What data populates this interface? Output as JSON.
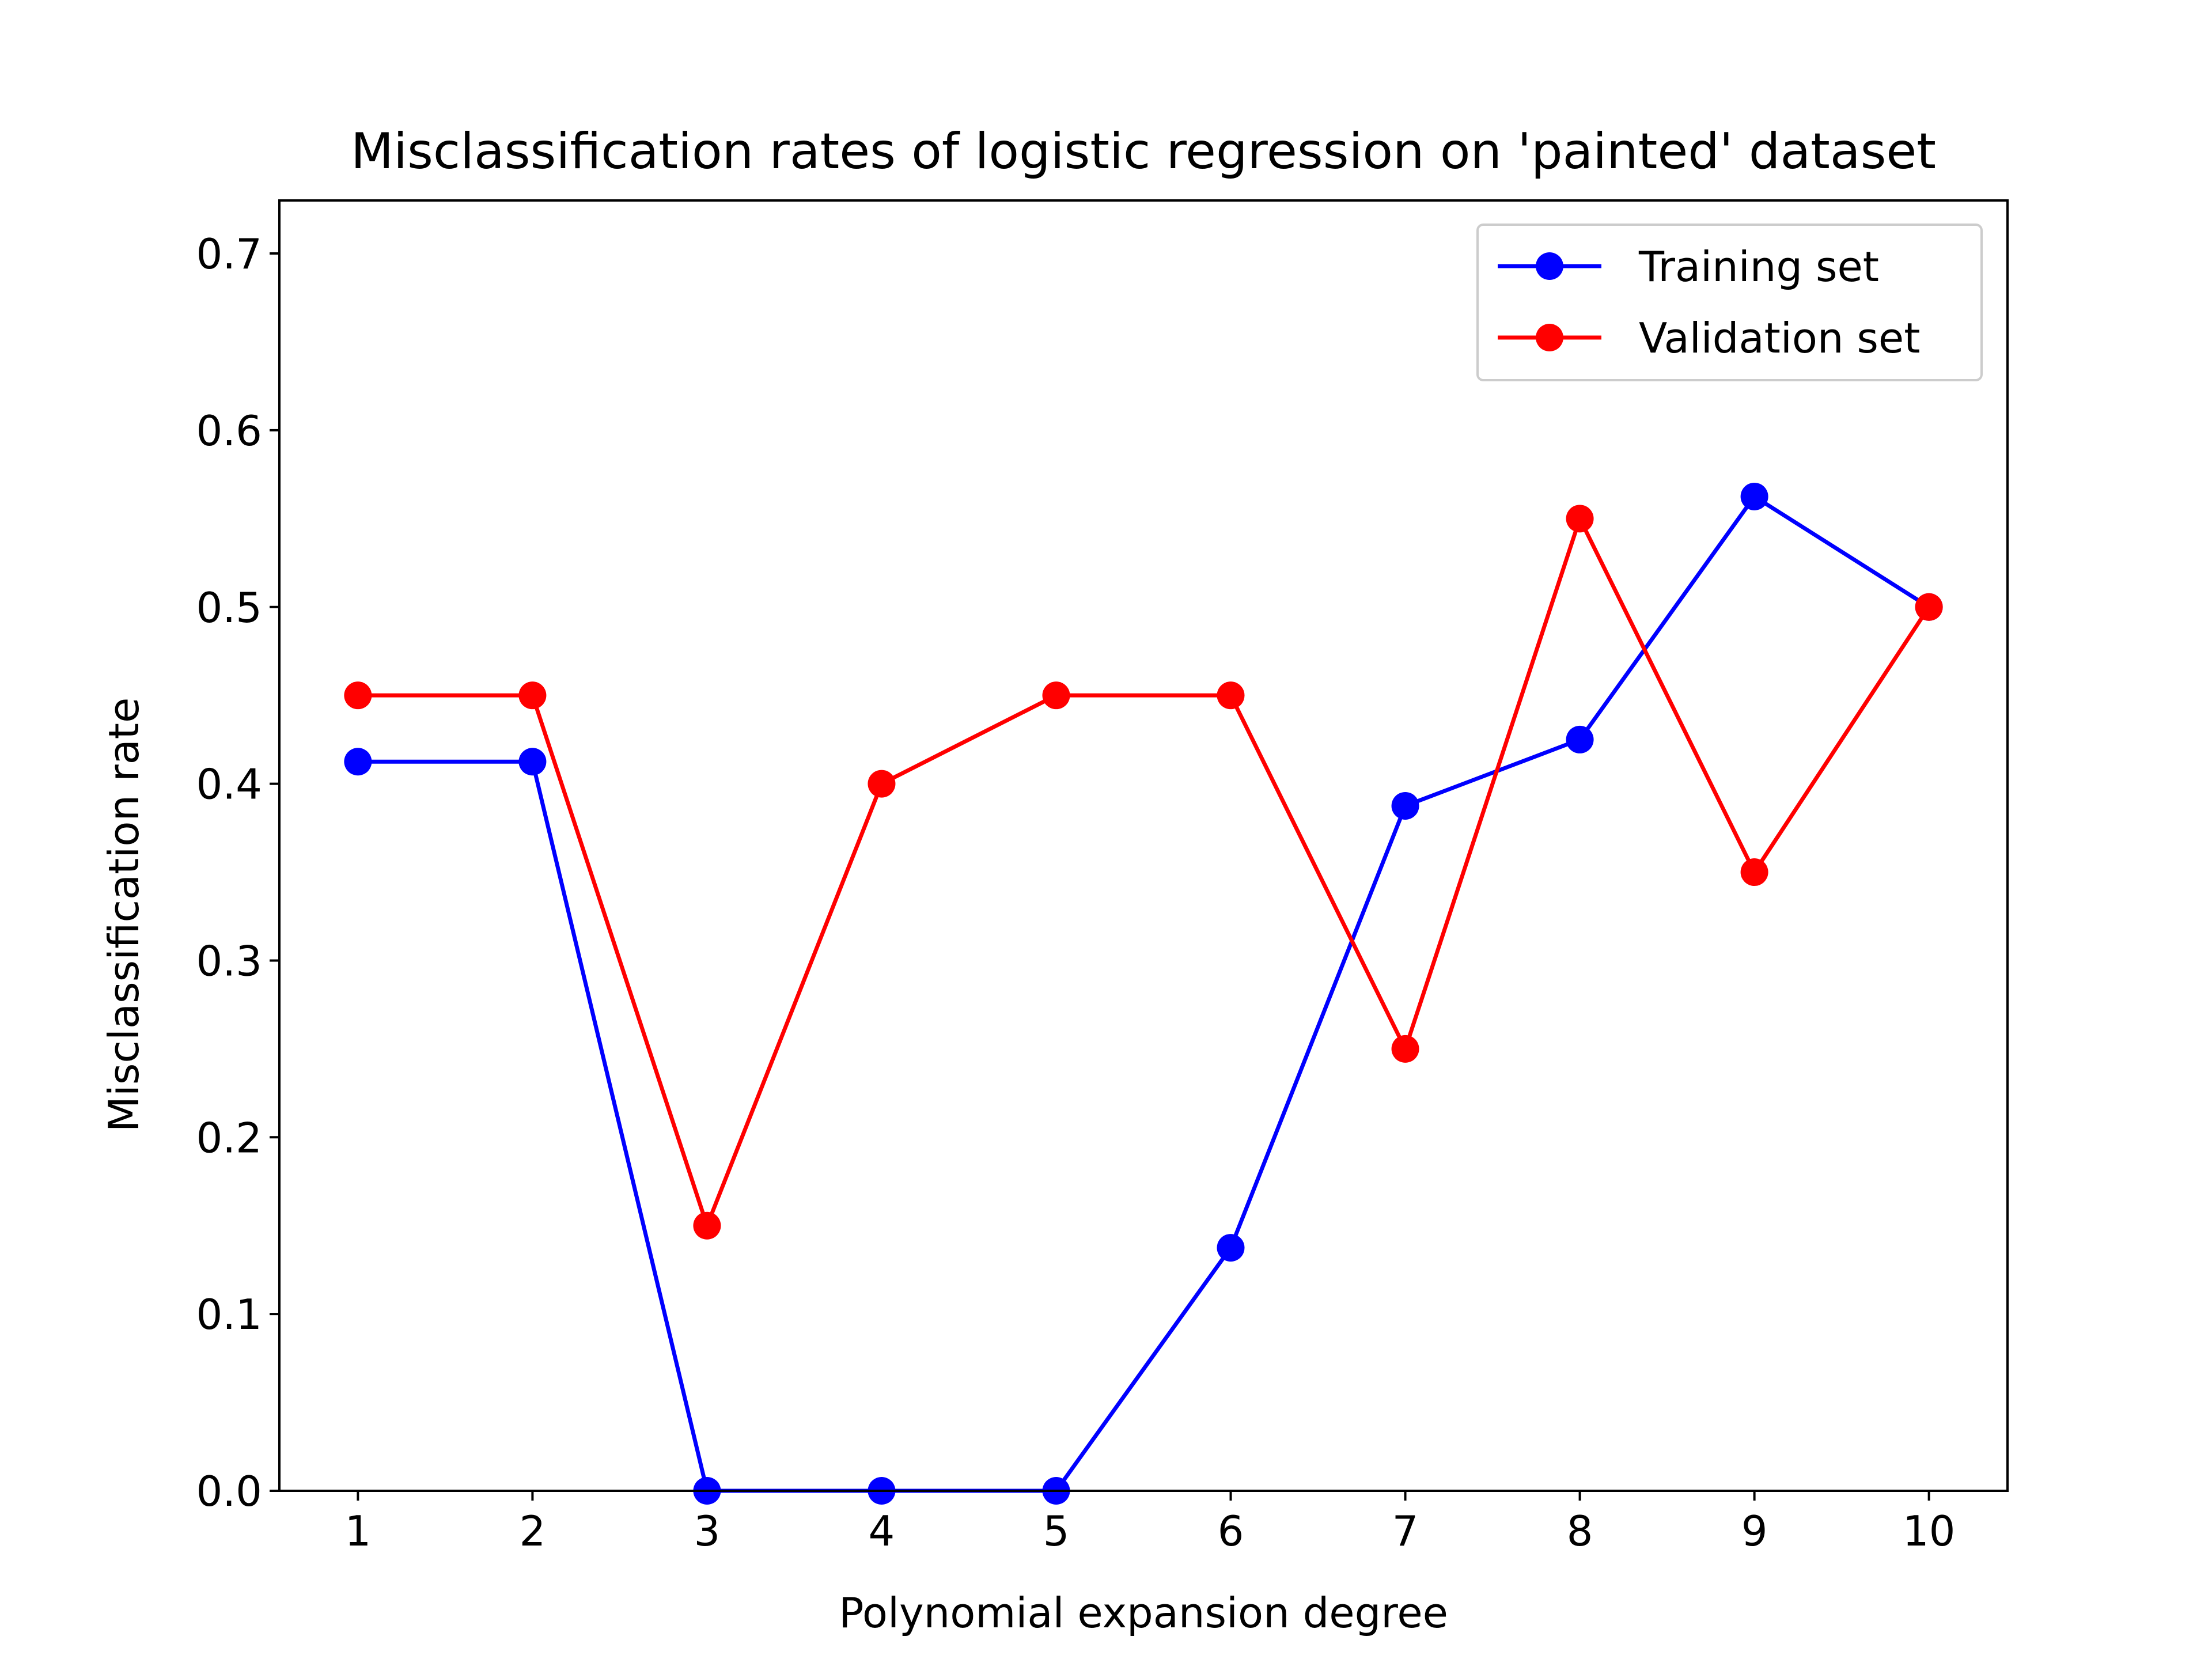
{
  "chart_data": {
    "type": "line",
    "title": "Misclassification rates of logistic regression on 'painted' dataset",
    "xlabel": "Polynomial expansion degree",
    "ylabel": "Misclassification rate",
    "x": [
      1,
      2,
      3,
      4,
      5,
      6,
      7,
      8,
      9,
      10
    ],
    "xticks": [
      "1",
      "2",
      "3",
      "4",
      "5",
      "6",
      "7",
      "8",
      "9",
      "10"
    ],
    "yticks": [
      "0.0",
      "0.1",
      "0.2",
      "0.3",
      "0.4",
      "0.5",
      "0.6",
      "0.7"
    ],
    "xlim": [
      0.55,
      10.45
    ],
    "ylim": [
      0.0,
      0.73
    ],
    "grid": false,
    "legend_position": "top-right",
    "series": [
      {
        "name": "Training set",
        "color": "#0000ff",
        "marker": "circle",
        "values": [
          0.4125,
          0.4125,
          0.0,
          0.0,
          0.0,
          0.1375,
          0.3875,
          0.425,
          0.5625,
          0.5
        ]
      },
      {
        "name": "Validation set",
        "color": "#ff0000",
        "marker": "circle",
        "values": [
          0.45,
          0.45,
          0.15,
          0.4,
          0.45,
          0.45,
          0.25,
          0.55,
          0.35,
          0.5
        ]
      }
    ]
  }
}
